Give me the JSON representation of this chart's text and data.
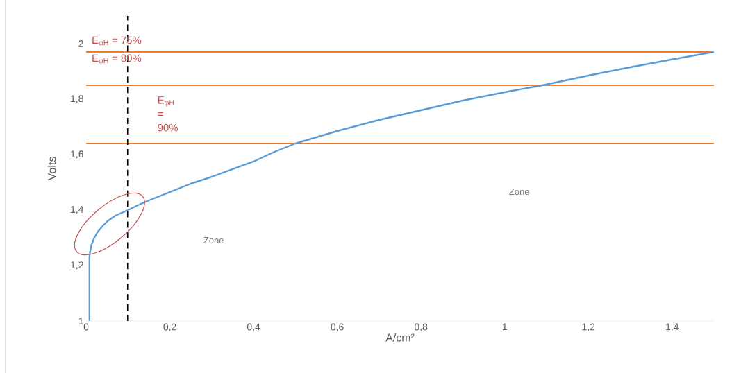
{
  "chart_data": {
    "type": "line",
    "xlabel": "A/cm²",
    "ylabel": "Volts",
    "x": [
      0.008,
      0.008,
      0.01,
      0.013,
      0.018,
      0.027,
      0.038,
      0.051,
      0.07,
      0.1,
      0.12,
      0.15,
      0.2,
      0.25,
      0.3,
      0.35,
      0.4,
      0.45,
      0.5,
      0.6,
      0.7,
      0.8,
      0.9,
      1.0,
      1.09,
      1.2,
      1.3,
      1.4,
      1.5
    ],
    "values": [
      1.0,
      1.23,
      1.255,
      1.275,
      1.295,
      1.32,
      1.34,
      1.36,
      1.38,
      1.4,
      1.415,
      1.435,
      1.465,
      1.495,
      1.52,
      1.548,
      1.575,
      1.61,
      1.64,
      1.685,
      1.725,
      1.76,
      1.795,
      1.825,
      1.85,
      1.885,
      1.915,
      1.943,
      1.97
    ],
    "color": "#5b9bd5",
    "xlim": [
      0,
      1.5
    ],
    "ylim": [
      1,
      2.1
    ],
    "xticks": [
      0,
      {
        "value": 0.2,
        "label": "0,2"
      },
      {
        "value": 0.4,
        "label": "0,4"
      },
      {
        "value": 0.6,
        "label": "0,6"
      },
      {
        "value": 0.8,
        "label": "0,8"
      },
      1,
      {
        "value": 1.2,
        "label": "1,2"
      },
      {
        "value": 1.4,
        "label": "1,4"
      }
    ],
    "yticks": [
      1,
      {
        "value": 1.2,
        "label": "1,2"
      },
      {
        "value": 1.4,
        "label": "1,4"
      },
      {
        "value": 1.6,
        "label": "1,6"
      },
      {
        "value": 1.8,
        "label": "1,8"
      },
      2
    ],
    "ref_lines": [
      {
        "axis": "y",
        "value": 1.97,
        "color": "#ed7d31"
      },
      {
        "axis": "y",
        "value": 1.85,
        "color": "#ed7d31"
      },
      {
        "axis": "y",
        "value": 1.64,
        "color": "#ed7d31"
      },
      {
        "axis": "x",
        "value": 0.1,
        "color": "#000000",
        "line_style": "dashed"
      }
    ],
    "annotations": [
      "E$_{φH}$ = 75%",
      "E$_{φH}$ = 80%",
      "E$_{φH}$ = 90%",
      "Zone",
      "Zone"
    ],
    "grid": false,
    "marker": "none",
    "line_style": "solid"
  }
}
